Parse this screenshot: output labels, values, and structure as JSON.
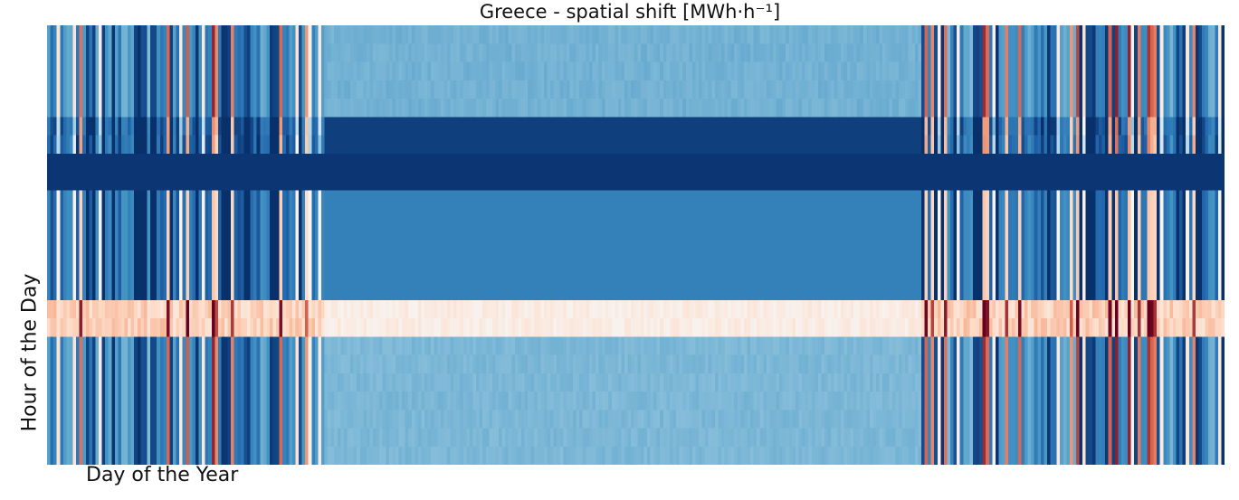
{
  "chart_data": {
    "type": "heatmap",
    "title": "Greece - spatial shift [MWh·h⁻¹]",
    "xlabel": "Day of the Year",
    "ylabel": "Hour of the Day",
    "x_range": [
      1,
      365
    ],
    "y_range": [
      0,
      23
    ],
    "colormap": "RdBu",
    "colors": {
      "strong_blue": "#08306b",
      "blue": "#2f75b5",
      "light_blue": "#92c5de",
      "white": "#f7f7f7",
      "light_red": "#fddbc7",
      "red": "#d6604d",
      "strong_red": "#67001f"
    },
    "notes": "Hour blocks read top-to-bottom: hours 0-4 light/mixed blue, 5-6 strong blue band (spring-autumn), 7-8 strongest blue band (all year), 9-14 medium blue, 15-16 near-white / pale red band with red spikes in winter, 17-23 light blue with winter variability."
  }
}
